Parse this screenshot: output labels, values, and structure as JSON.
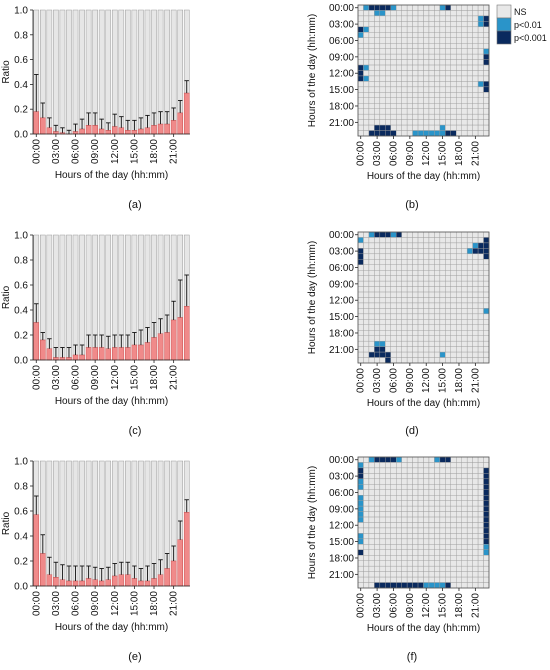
{
  "chart_data": [
    {
      "panel": "a",
      "type": "bar",
      "caption": "(a)",
      "xlabel": "Hours of the day (hh:mm)",
      "ylabel": "Ratio",
      "ylim": [
        0,
        1.0
      ],
      "yticks": [
        "0.0",
        "0.2",
        "0.4",
        "0.6",
        "0.8",
        "1.0"
      ],
      "xtick_labels": [
        "00:00",
        "03:00",
        "06:00",
        "09:00",
        "12:00",
        "15:00",
        "18:00",
        "21:00"
      ],
      "categories": [
        "00:00",
        "01:00",
        "02:00",
        "03:00",
        "04:00",
        "05:00",
        "06:00",
        "07:00",
        "08:00",
        "09:00",
        "10:00",
        "11:00",
        "12:00",
        "13:00",
        "14:00",
        "15:00",
        "16:00",
        "17:00",
        "18:00",
        "19:00",
        "20:00",
        "21:00",
        "22:00",
        "23:00"
      ],
      "values": [
        0.18,
        0.13,
        0.05,
        0.02,
        0.01,
        0.0,
        0.02,
        0.04,
        0.07,
        0.07,
        0.04,
        0.03,
        0.06,
        0.05,
        0.03,
        0.03,
        0.04,
        0.05,
        0.07,
        0.08,
        0.08,
        0.11,
        0.17,
        0.33
      ],
      "errors": [
        0.3,
        0.12,
        0.08,
        0.05,
        0.04,
        0.03,
        0.06,
        0.08,
        0.1,
        0.1,
        0.08,
        0.06,
        0.1,
        0.09,
        0.08,
        0.08,
        0.09,
        0.1,
        0.1,
        0.1,
        0.1,
        0.1,
        0.1,
        0.1
      ]
    },
    {
      "panel": "b",
      "type": "heatmap",
      "caption": "(b)",
      "xlabel": "Hours of the day (hh:mm)",
      "ylabel": "Hours of the day (hh:mm)",
      "tick_labels": [
        "00:00",
        "03:00",
        "06:00",
        "09:00",
        "12:00",
        "15:00",
        "18:00",
        "21:00"
      ],
      "legend": [
        "NS",
        "p<0.01",
        "p<0.001"
      ],
      "cells_p001": [
        [
          0,
          2
        ],
        [
          0,
          3
        ],
        [
          0,
          4
        ],
        [
          0,
          5
        ],
        [
          0,
          16
        ],
        [
          2,
          23
        ],
        [
          3,
          23
        ],
        [
          4,
          0
        ],
        [
          9,
          23
        ],
        [
          10,
          23
        ],
        [
          11,
          0
        ],
        [
          12,
          0
        ],
        [
          13,
          0
        ],
        [
          14,
          23
        ],
        [
          15,
          23
        ],
        [
          22,
          3
        ],
        [
          22,
          4
        ],
        [
          22,
          5
        ],
        [
          23,
          2
        ],
        [
          23,
          3
        ],
        [
          23,
          4
        ],
        [
          23,
          5
        ],
        [
          23,
          6
        ],
        [
          23,
          16
        ],
        [
          23,
          17
        ]
      ],
      "cells_p01": [
        [
          0,
          1
        ],
        [
          0,
          6
        ],
        [
          0,
          15
        ],
        [
          1,
          3
        ],
        [
          1,
          4
        ],
        [
          2,
          22
        ],
        [
          3,
          22
        ],
        [
          4,
          1
        ],
        [
          5,
          0
        ],
        [
          8,
          23
        ],
        [
          11,
          1
        ],
        [
          13,
          1
        ],
        [
          14,
          22
        ],
        [
          22,
          15
        ],
        [
          23,
          10
        ],
        [
          23,
          11
        ],
        [
          23,
          12
        ],
        [
          23,
          13
        ],
        [
          23,
          14
        ],
        [
          23,
          15
        ]
      ]
    },
    {
      "panel": "c",
      "type": "bar",
      "caption": "(c)",
      "xlabel": "Hours of the day (hh:mm)",
      "ylabel": "Ratio",
      "ylim": [
        0,
        1.0
      ],
      "yticks": [
        "0.0",
        "0.2",
        "0.4",
        "0.6",
        "0.8",
        "1.0"
      ],
      "xtick_labels": [
        "00:00",
        "03:00",
        "06:00",
        "09:00",
        "12:00",
        "15:00",
        "18:00",
        "21:00"
      ],
      "categories": [
        "00:00",
        "01:00",
        "02:00",
        "03:00",
        "04:00",
        "05:00",
        "06:00",
        "07:00",
        "08:00",
        "09:00",
        "10:00",
        "11:00",
        "12:00",
        "13:00",
        "14:00",
        "15:00",
        "16:00",
        "17:00",
        "18:00",
        "19:00",
        "20:00",
        "21:00",
        "22:00",
        "23:00"
      ],
      "values": [
        0.3,
        0.16,
        0.09,
        0.02,
        0.02,
        0.02,
        0.04,
        0.04,
        0.1,
        0.1,
        0.1,
        0.09,
        0.1,
        0.1,
        0.1,
        0.12,
        0.12,
        0.14,
        0.18,
        0.21,
        0.22,
        0.32,
        0.34,
        0.43
      ],
      "errors": [
        0.15,
        0.06,
        0.08,
        0.08,
        0.08,
        0.08,
        0.08,
        0.08,
        0.1,
        0.1,
        0.1,
        0.1,
        0.1,
        0.1,
        0.1,
        0.1,
        0.12,
        0.12,
        0.12,
        0.12,
        0.14,
        0.15,
        0.3,
        0.25
      ]
    },
    {
      "panel": "d",
      "type": "heatmap",
      "caption": "(d)",
      "xlabel": "Hours of the day (hh:mm)",
      "ylabel": "Hours of the day (hh:mm)",
      "tick_labels": [
        "00:00",
        "03:00",
        "06:00",
        "09:00",
        "12:00",
        "15:00",
        "18:00",
        "21:00"
      ],
      "cells_p001": [
        [
          0,
          3
        ],
        [
          0,
          4
        ],
        [
          0,
          5
        ],
        [
          0,
          7
        ],
        [
          1,
          23
        ],
        [
          2,
          22
        ],
        [
          2,
          23
        ],
        [
          3,
          0
        ],
        [
          3,
          21
        ],
        [
          3,
          22
        ],
        [
          3,
          23
        ],
        [
          4,
          0
        ],
        [
          4,
          23
        ],
        [
          5,
          0
        ],
        [
          21,
          3
        ],
        [
          21,
          4
        ],
        [
          22,
          2
        ],
        [
          22,
          3
        ],
        [
          22,
          4
        ],
        [
          22,
          5
        ],
        [
          23,
          5
        ]
      ],
      "cells_p01": [
        [
          0,
          2
        ],
        [
          0,
          6
        ],
        [
          1,
          0
        ],
        [
          2,
          21
        ],
        [
          3,
          20
        ],
        [
          14,
          23
        ],
        [
          20,
          3
        ],
        [
          20,
          4
        ],
        [
          22,
          15
        ]
      ]
    },
    {
      "panel": "e",
      "type": "bar",
      "caption": "(e)",
      "xlabel": "Hours of the day (hh:mm)",
      "ylabel": "Ratio",
      "ylim": [
        0,
        1.0
      ],
      "yticks": [
        "0.0",
        "0.2",
        "0.4",
        "0.6",
        "0.8",
        "1.0"
      ],
      "xtick_labels": [
        "00:00",
        "03:00",
        "06:00",
        "09:00",
        "12:00",
        "15:00",
        "18:00",
        "21:00"
      ],
      "categories": [
        "00:00",
        "01:00",
        "02:00",
        "03:00",
        "04:00",
        "05:00",
        "06:00",
        "07:00",
        "08:00",
        "09:00",
        "10:00",
        "11:00",
        "12:00",
        "13:00",
        "14:00",
        "15:00",
        "16:00",
        "17:00",
        "18:00",
        "19:00",
        "20:00",
        "21:00",
        "22:00",
        "23:00"
      ],
      "values": [
        0.57,
        0.26,
        0.09,
        0.07,
        0.05,
        0.04,
        0.04,
        0.04,
        0.06,
        0.05,
        0.04,
        0.05,
        0.08,
        0.09,
        0.09,
        0.06,
        0.04,
        0.04,
        0.06,
        0.09,
        0.14,
        0.2,
        0.37,
        0.59
      ],
      "errors": [
        0.15,
        0.15,
        0.14,
        0.12,
        0.12,
        0.12,
        0.12,
        0.12,
        0.1,
        0.1,
        0.1,
        0.1,
        0.1,
        0.1,
        0.1,
        0.1,
        0.1,
        0.12,
        0.12,
        0.12,
        0.12,
        0.12,
        0.15,
        0.1
      ]
    },
    {
      "panel": "f",
      "type": "heatmap",
      "caption": "(f)",
      "xlabel": "Hours of the day (hh:mm)",
      "ylabel": "Hours of the day (hh:mm)",
      "tick_labels": [
        "00:00",
        "03:00",
        "06:00",
        "09:00",
        "12:00",
        "15:00",
        "18:00",
        "21:00"
      ],
      "cells_p001": [
        [
          0,
          3
        ],
        [
          0,
          4
        ],
        [
          0,
          5
        ],
        [
          0,
          6
        ],
        [
          0,
          15
        ],
        [
          0,
          16
        ],
        [
          2,
          0
        ],
        [
          2,
          23
        ],
        [
          3,
          0
        ],
        [
          3,
          23
        ],
        [
          4,
          23
        ],
        [
          5,
          23
        ],
        [
          6,
          23
        ],
        [
          7,
          23
        ],
        [
          8,
          23
        ],
        [
          9,
          23
        ],
        [
          10,
          23
        ],
        [
          11,
          23
        ],
        [
          12,
          23
        ],
        [
          13,
          23
        ],
        [
          14,
          23
        ],
        [
          15,
          23
        ],
        [
          17,
          0
        ],
        [
          23,
          3
        ],
        [
          23,
          4
        ],
        [
          23,
          5
        ],
        [
          23,
          6
        ],
        [
          23,
          7
        ],
        [
          23,
          8
        ],
        [
          23,
          9
        ],
        [
          23,
          10
        ],
        [
          23,
          11
        ],
        [
          23,
          16
        ]
      ],
      "cells_p01": [
        [
          0,
          2
        ],
        [
          0,
          7
        ],
        [
          0,
          14
        ],
        [
          1,
          0
        ],
        [
          4,
          0
        ],
        [
          5,
          0
        ],
        [
          7,
          0
        ],
        [
          8,
          0
        ],
        [
          9,
          0
        ],
        [
          10,
          0
        ],
        [
          11,
          0
        ],
        [
          14,
          0
        ],
        [
          15,
          0
        ],
        [
          16,
          23
        ],
        [
          17,
          23
        ],
        [
          23,
          12
        ],
        [
          23,
          13
        ],
        [
          23,
          14
        ],
        [
          23,
          15
        ]
      ]
    }
  ],
  "colors": {
    "bar_fill": "#f08a8a",
    "bar_edge": "#c94f4f",
    "background_bar": "#e6e6e6",
    "ns_cell": "#e8e8e8",
    "p01_cell": "#2a94c9",
    "p001_cell": "#0a2a5e",
    "axis": "#222222"
  }
}
